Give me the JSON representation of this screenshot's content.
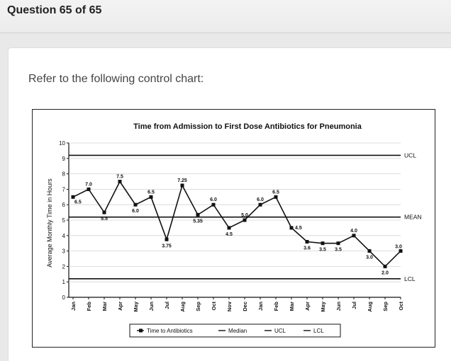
{
  "header": {
    "title": "Question 65 of 65"
  },
  "question": {
    "prompt": "Refer to the following control chart:"
  },
  "chart_data": {
    "type": "line",
    "title": "Time from Admission to First Dose Antibiotics for Pneumonia",
    "ylabel": "Average Monthly Time in Hours",
    "xlabel": "",
    "ylim": [
      0,
      10
    ],
    "yticks": [
      "0",
      "1",
      "2",
      "3",
      "4",
      "5",
      "6",
      "7",
      "8",
      "9",
      "10"
    ],
    "categories": [
      "Jan",
      "Feb",
      "Mar",
      "Apr",
      "May",
      "Jun",
      "Jul",
      "Aug",
      "Sep",
      "Oct",
      "Nov",
      "Dec",
      "Jan",
      "Feb",
      "Mar",
      "Apr",
      "May",
      "Jun",
      "Jul",
      "Aug",
      "Sep",
      "Oct"
    ],
    "values": [
      6.5,
      7.0,
      5.5,
      7.5,
      6.0,
      6.5,
      3.75,
      7.25,
      5.35,
      6.0,
      4.5,
      5.0,
      6.0,
      6.5,
      4.5,
      3.6,
      3.5,
      3.5,
      4.0,
      3.0,
      2.0,
      3.0
    ],
    "labels": [
      "6.5",
      "7.0",
      "5.5",
      "7.5",
      "6.0",
      "6.5",
      "3.75",
      "7.25",
      "5.35",
      "6.0",
      "4.5",
      "5.0",
      "6.0",
      "6.5",
      "4.5",
      "3.6",
      "3.5",
      "3.5",
      "4.0",
      "3.0",
      "2.0",
      "3.0"
    ],
    "ucl": 9.2,
    "mean": 5.2,
    "lcl": 1.2,
    "line_labels": {
      "ucl": "UCL",
      "mean": "MEAN",
      "lcl": "LCL"
    },
    "grid": false,
    "legend_position": "bottom",
    "legend": [
      "Time to Antibiotics",
      "Median",
      "UCL",
      "LCL"
    ]
  }
}
